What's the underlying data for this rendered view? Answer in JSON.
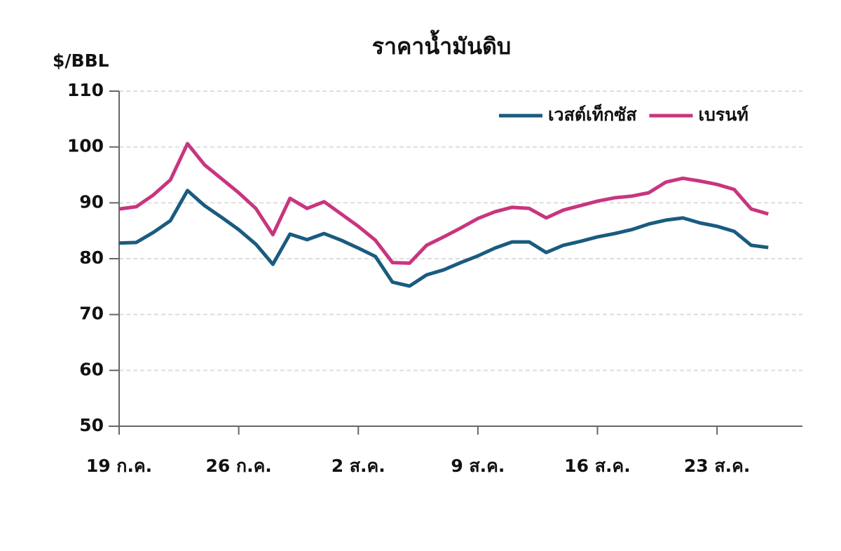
{
  "chart_data": {
    "type": "line",
    "title": "ราคาน้ำมันดิบ",
    "y_label": "$/BBL",
    "x": [
      0,
      1,
      2,
      3,
      4,
      5,
      6,
      7,
      8,
      9,
      10,
      11,
      12,
      13,
      14,
      15,
      16,
      17,
      18,
      19,
      20,
      21,
      22,
      23,
      24,
      25,
      26,
      27,
      28,
      29,
      30,
      31,
      32,
      33,
      34,
      35,
      36,
      37,
      38
    ],
    "series": [
      {
        "name": "เวสต์เท็กซัส",
        "color": "#1a5b80",
        "values": [
          82.8,
          82.9,
          84.7,
          86.8,
          92.2,
          89.5,
          87.4,
          85.2,
          82.6,
          79.0,
          84.4,
          83.4,
          84.5,
          83.3,
          81.9,
          80.4,
          75.8,
          75.1,
          77.1,
          78.0,
          79.3,
          80.5,
          81.9,
          83.0,
          83.0,
          81.1,
          82.4,
          83.1,
          83.9,
          84.5,
          85.2,
          86.2,
          86.9,
          87.3,
          86.4,
          85.8,
          84.9,
          82.4,
          82.0
        ]
      },
      {
        "name": "เบรนท์",
        "color": "#c8357f",
        "values": [
          88.9,
          89.3,
          91.4,
          94.1,
          100.6,
          96.8,
          94.3,
          91.8,
          89.0,
          84.3,
          90.8,
          89.0,
          90.2,
          88.0,
          85.8,
          83.3,
          79.3,
          79.2,
          82.4,
          83.9,
          85.5,
          87.2,
          88.4,
          89.2,
          89.0,
          87.3,
          88.7,
          89.5,
          90.3,
          90.9,
          91.2,
          91.8,
          93.7,
          94.4,
          93.9,
          93.3,
          92.4,
          88.9,
          88.0
        ]
      }
    ],
    "xlim": [
      0,
      40
    ],
    "xticks": [
      {
        "value": 0,
        "label": "19 ก.ค."
      },
      {
        "value": 7,
        "label": "26 ก.ค."
      },
      {
        "value": 14,
        "label": "2 ส.ค."
      },
      {
        "value": 21,
        "label": "9 ส.ค."
      },
      {
        "value": 28,
        "label": "16 ส.ค."
      },
      {
        "value": 35,
        "label": "23 ส.ค."
      }
    ],
    "ylim": [
      50,
      110
    ],
    "yticks": [
      50,
      60,
      70,
      80,
      90,
      100,
      110
    ],
    "grid": true,
    "legend": "upper right"
  }
}
